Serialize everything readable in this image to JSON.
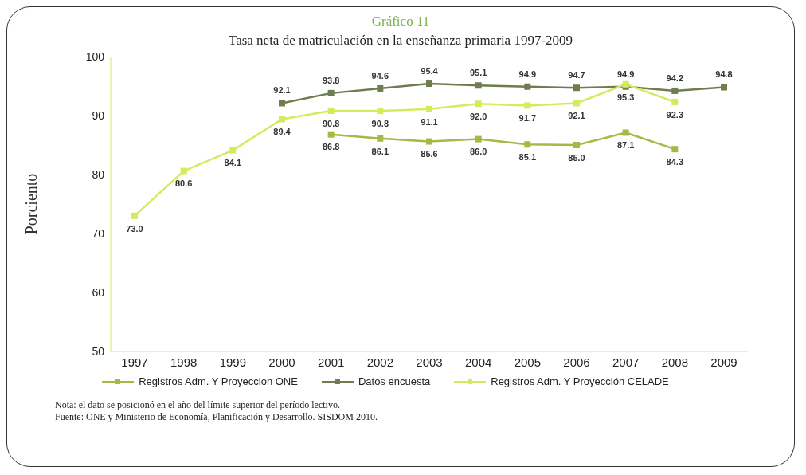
{
  "chart_data": {
    "type": "line",
    "title": "Gráfico 11",
    "subtitle": "Tasa neta de matriculación en la enseñanza primaria 1997-2009",
    "ylabel": "Porciento",
    "categories": [
      "1997",
      "1998",
      "1999",
      "2000",
      "2001",
      "2002",
      "2003",
      "2004",
      "2005",
      "2006",
      "2007",
      "2008",
      "2009"
    ],
    "series": [
      {
        "name": "Registros Adm. Y Proyeccion ONE",
        "color": "#a9b845",
        "values": [
          null,
          null,
          null,
          null,
          86.8,
          86.1,
          85.6,
          86.0,
          85.1,
          85.0,
          87.1,
          84.3,
          null
        ],
        "value_labels": [
          null,
          null,
          null,
          null,
          "86.8",
          "86.1",
          "85.6",
          "86.0",
          "85.1",
          "85.0",
          "87.1",
          "84.3",
          null
        ]
      },
      {
        "name": "Datos encuesta",
        "color": "#6e7d4f",
        "values": [
          null,
          null,
          null,
          92.1,
          93.8,
          94.6,
          95.4,
          95.1,
          94.9,
          94.7,
          94.9,
          94.2,
          94.8
        ],
        "value_labels": [
          null,
          null,
          null,
          "92.1",
          "93.8",
          "94.6",
          "95.4",
          "95.1",
          "94.9",
          "94.7",
          "94.9",
          "94.2",
          "94.8"
        ]
      },
      {
        "name": "Registros Adm. Y Proyección CELADE",
        "color": "#d6ea5e",
        "values": [
          73.0,
          80.6,
          84.1,
          89.4,
          90.8,
          90.8,
          91.1,
          92.0,
          91.7,
          92.1,
          95.3,
          92.3,
          null
        ],
        "value_labels": [
          "73.0",
          "80.6",
          "84.1",
          "89.4",
          "90.8",
          "90.8",
          "91.1",
          "92.0",
          "91.7",
          "92.1",
          "95.3",
          "92.3",
          null
        ]
      }
    ],
    "ylim": [
      50,
      100
    ],
    "yticks": [
      50,
      60,
      70,
      80,
      90,
      100
    ],
    "grid": false,
    "legend": "bottom",
    "marker": "square",
    "annotations": [
      "Nota: el dato se posicionó en el año del límite superior del período lectivo.",
      "Fuente: ONE y Ministerio de Economía, Planificación y Desarrollo. SISDOM 2010."
    ]
  }
}
